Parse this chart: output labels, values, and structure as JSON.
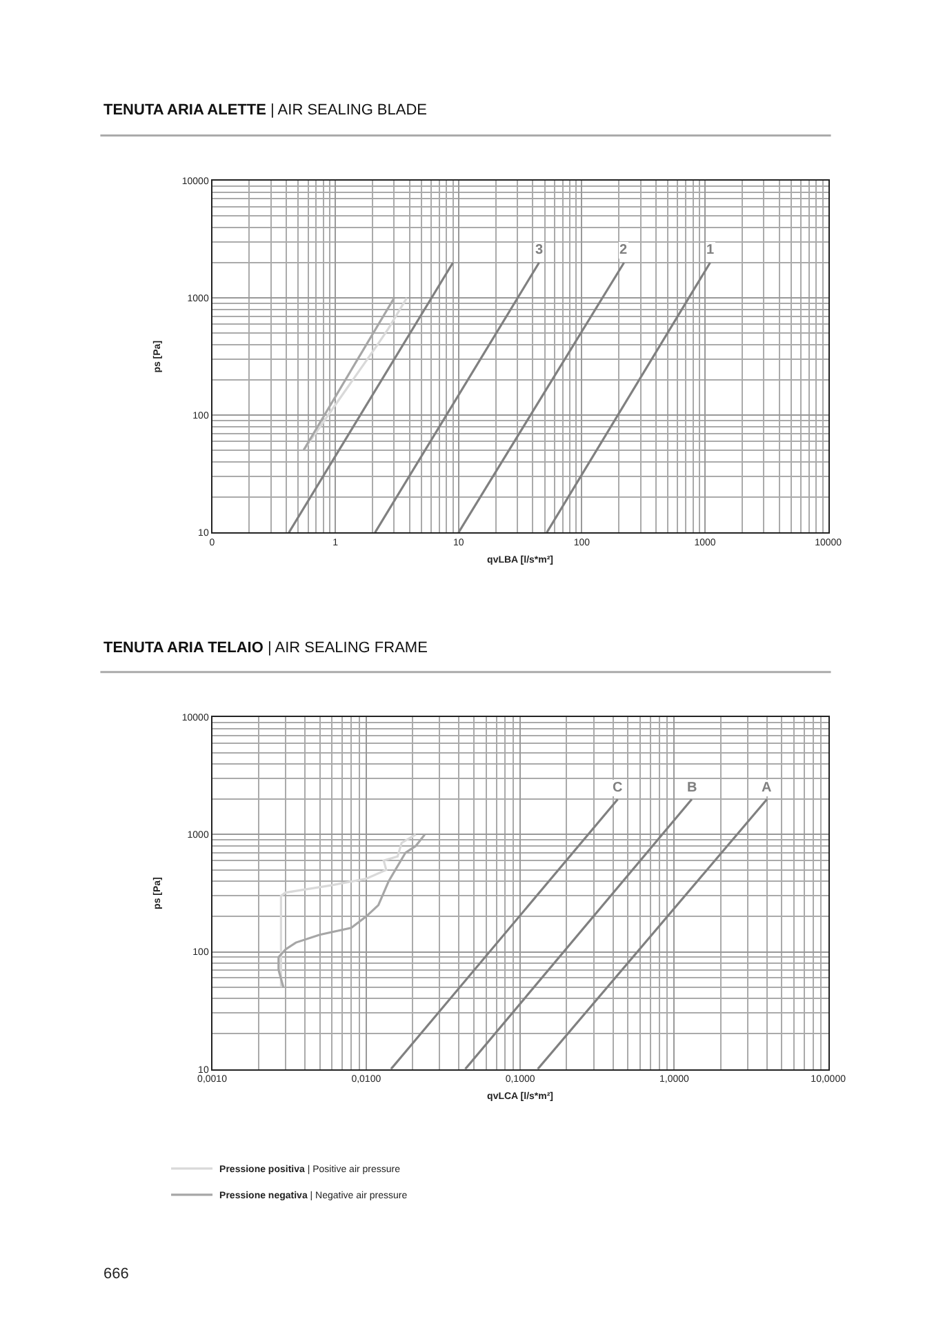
{
  "chart_data": [
    {
      "type": "line",
      "title": "TENUTA ARIA ALETTE | AIR SEALING BLADE",
      "xlabel": "qvLBA [l/s*m²]",
      "ylabel": "ps [Pa]",
      "log": "xy",
      "grid": true,
      "line_style": "solid",
      "xlim": [
        0.1,
        10000
      ],
      "xticks": [
        {
          "value": 0.1,
          "label": "0"
        },
        1,
        10,
        100,
        1000,
        10000
      ],
      "ylim": [
        10,
        10000
      ],
      "yticks": [
        10,
        100,
        1000,
        10000
      ],
      "series": [
        {
          "color": "#d9d9d9",
          "x": [
            0.55,
            2.2,
            2.7,
            3.8
          ],
          "values": [
            50,
            400,
            550,
            1000
          ]
        },
        {
          "color": "#a6a6a6",
          "x": [
            0.55,
            3
          ],
          "values": [
            50,
            1000
          ]
        },
        {
          "color": "#808080",
          "x": [
            0.42,
            9
          ],
          "values": [
            10,
            2000
          ]
        },
        {
          "name": "3",
          "color": "#808080",
          "x": [
            2.1,
            45
          ],
          "values": [
            10,
            2000
          ]
        },
        {
          "name": "2",
          "color": "#808080",
          "x": [
            10,
            220
          ],
          "values": [
            10,
            2000
          ]
        },
        {
          "name": "1",
          "color": "#808080",
          "x": [
            52,
            1100
          ],
          "values": [
            10,
            2000
          ]
        }
      ]
    },
    {
      "type": "line",
      "title": "TENUTA ARIA TELAIO | AIR SEALING FRAME",
      "xlabel": "qvLCA [l/s*m²]",
      "ylabel": "ps [Pa]",
      "log": "xy",
      "grid": true,
      "line_style": "solid",
      "legend": "bottom",
      "xlim": [
        0.001,
        10
      ],
      "xticks": [
        {
          "value": 0.001,
          "label": "0,0010"
        },
        {
          "value": 0.01,
          "label": "0,0100"
        },
        {
          "value": 0.1,
          "label": "0,1000"
        },
        {
          "value": 1,
          "label": "1,0000"
        },
        {
          "value": 10,
          "label": "10,0000"
        }
      ],
      "ylim": [
        10,
        10000
      ],
      "yticks": [
        10,
        100,
        1000,
        10000
      ],
      "annotations": [
        "666"
      ],
      "series": [
        {
          "name": "Pressione positiva | Positive air pressure",
          "color": "#d9d9d9",
          "x": [
            0.021,
            0.017,
            0.016,
            0.013,
            0.0135,
            0.01,
            0.006,
            0.003,
            0.0028,
            0.0028,
            0.0028
          ],
          "values": [
            1000,
            850,
            650,
            600,
            500,
            420,
            370,
            320,
            300,
            100,
            50
          ]
        },
        {
          "name": "Pressione negativa | Negative air pressure",
          "color": "#a6a6a6",
          "x": [
            0.024,
            0.021,
            0.018,
            0.014,
            0.012,
            0.01,
            0.008,
            0.005,
            0.0035,
            0.003,
            0.0027,
            0.0027,
            0.0029
          ],
          "values": [
            1000,
            800,
            700,
            400,
            250,
            200,
            160,
            140,
            120,
            105,
            90,
            70,
            50
          ]
        },
        {
          "name": "C",
          "color": "#808080",
          "x": [
            0.0145,
            0.43
          ],
          "values": [
            10,
            2000
          ]
        },
        {
          "name": "B",
          "color": "#808080",
          "x": [
            0.044,
            1.3
          ],
          "values": [
            10,
            2000
          ]
        },
        {
          "name": "A",
          "color": "#808080",
          "x": [
            0.13,
            4
          ],
          "values": [
            10,
            2000
          ]
        }
      ]
    }
  ]
}
